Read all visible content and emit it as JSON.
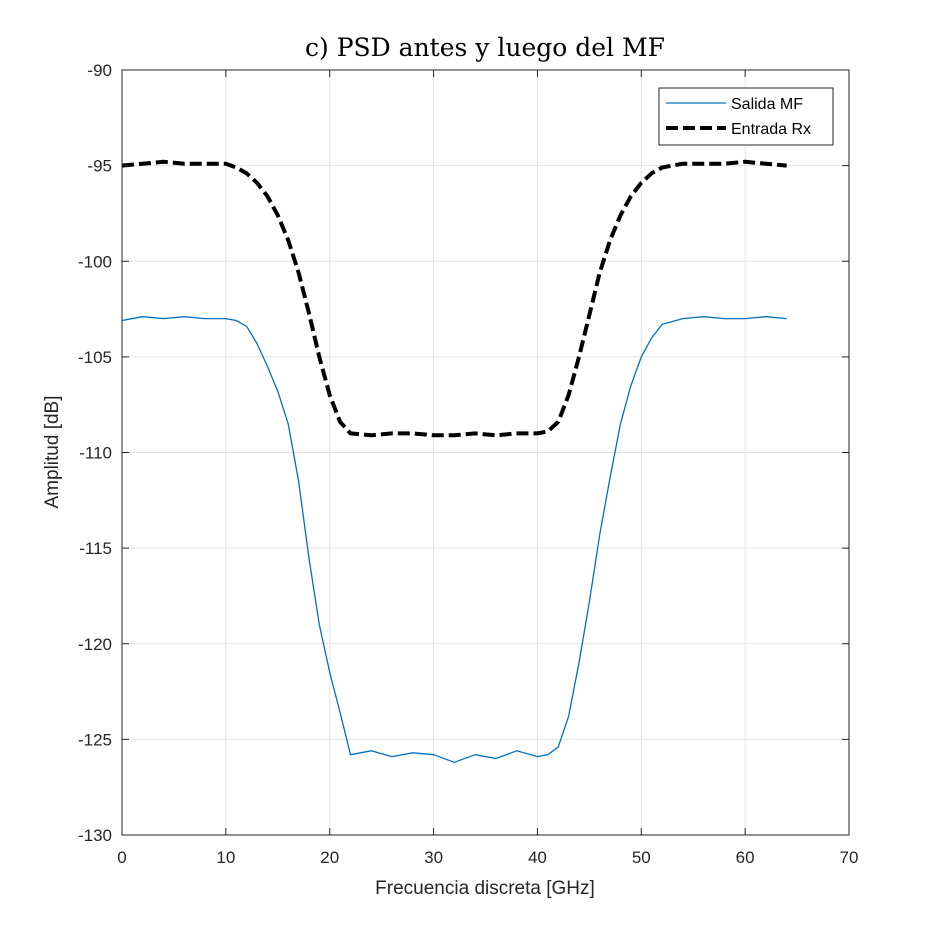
{
  "chart_data": {
    "type": "line",
    "title": "c) PSD antes y luego del MF",
    "xlabel": "Frecuencia discreta [GHz]",
    "ylabel": "Amplitud [dB]",
    "xlim": [
      0,
      70
    ],
    "ylim": [
      -130,
      -90
    ],
    "xticks": [
      "0",
      "10",
      "20",
      "30",
      "40",
      "50",
      "60",
      "70"
    ],
    "yticks": [
      "-90",
      "-95",
      "-100",
      "-105",
      "-110",
      "-115",
      "-120",
      "-125",
      "-130"
    ],
    "grid": true,
    "legend_position": "top-right",
    "series": [
      {
        "name": "Salida MF",
        "color": "#0072BD",
        "style": "solid",
        "x": [
          0,
          2,
          4,
          6,
          8,
          10,
          11,
          12,
          13,
          14,
          15,
          16,
          17,
          18,
          19,
          20,
          21,
          22,
          24,
          26,
          28,
          30,
          32,
          34,
          36,
          38,
          40,
          41,
          42,
          43,
          44,
          45,
          46,
          47,
          48,
          49,
          50,
          51,
          52,
          54,
          56,
          58,
          60,
          62,
          64
        ],
        "y": [
          -103.1,
          -102.9,
          -103.0,
          -102.9,
          -103.0,
          -103.0,
          -103.1,
          -103.4,
          -104.3,
          -105.5,
          -106.8,
          -108.5,
          -111.5,
          -115.5,
          -119.0,
          -121.5,
          -123.6,
          -125.8,
          -125.6,
          -125.9,
          -125.7,
          -125.8,
          -126.2,
          -125.8,
          -126.0,
          -125.6,
          -125.9,
          -125.8,
          -125.4,
          -123.8,
          -121.0,
          -117.8,
          -114.3,
          -111.3,
          -108.5,
          -106.5,
          -105.0,
          -104.0,
          -103.3,
          -103.0,
          -102.9,
          -103.0,
          -103.0,
          -102.9,
          -103.0
        ]
      },
      {
        "name": "Entrada Rx",
        "color": "#000000",
        "style": "dashed",
        "x": [
          0,
          2,
          4,
          6,
          8,
          10,
          11,
          12,
          13,
          14,
          15,
          16,
          17,
          18,
          19,
          20,
          21,
          22,
          24,
          26,
          28,
          30,
          32,
          34,
          36,
          38,
          40,
          41,
          42,
          43,
          44,
          45,
          46,
          47,
          48,
          49,
          50,
          51,
          52,
          54,
          56,
          58,
          60,
          62,
          64
        ],
        "y": [
          -95.0,
          -94.9,
          -94.8,
          -94.9,
          -94.9,
          -94.9,
          -95.1,
          -95.4,
          -95.9,
          -96.6,
          -97.6,
          -98.9,
          -100.6,
          -102.7,
          -105.0,
          -107.0,
          -108.4,
          -109.0,
          -109.1,
          -109.0,
          -109.0,
          -109.1,
          -109.1,
          -109.0,
          -109.1,
          -109.0,
          -109.0,
          -108.9,
          -108.4,
          -107.0,
          -105.0,
          -102.8,
          -100.6,
          -98.9,
          -97.6,
          -96.6,
          -95.9,
          -95.4,
          -95.1,
          -94.9,
          -94.9,
          -94.9,
          -94.8,
          -94.9,
          -95.0
        ]
      }
    ]
  }
}
